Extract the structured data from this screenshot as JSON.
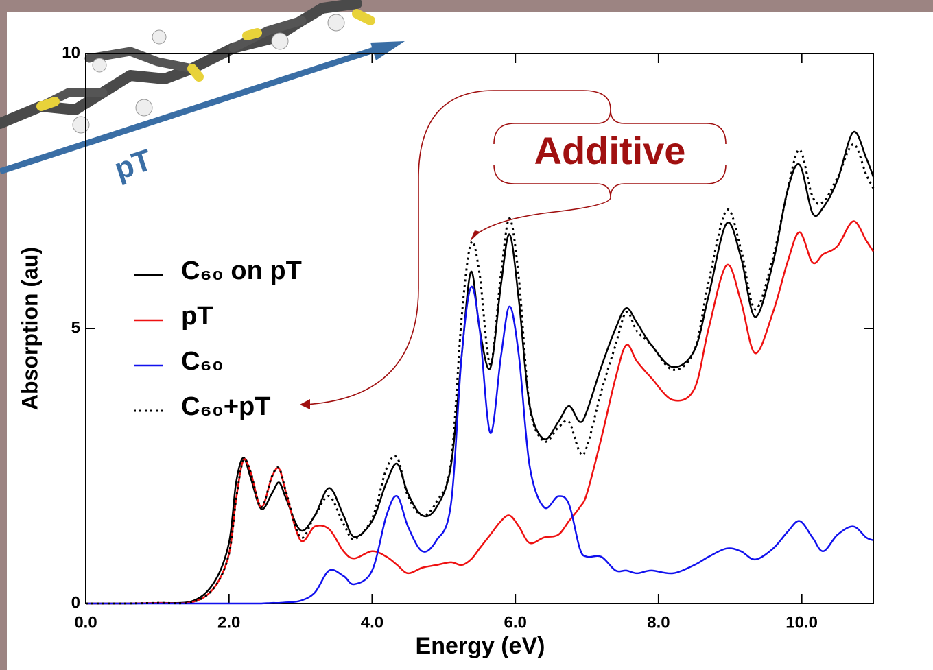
{
  "chart_data": {
    "type": "line",
    "xlabel": "Energy (eV)",
    "ylabel": "Absorption (au)",
    "annotations": [
      "Additive",
      "pT"
    ],
    "x": [
      0,
      0.5,
      1.0,
      1.5,
      1.8,
      2.0,
      2.1,
      2.2,
      2.3,
      2.45,
      2.6,
      2.7,
      2.8,
      3.0,
      3.2,
      3.4,
      3.6,
      3.75,
      4.0,
      4.2,
      4.35,
      4.5,
      4.7,
      4.9,
      5.1,
      5.25,
      5.38,
      5.5,
      5.65,
      5.8,
      5.92,
      6.05,
      6.2,
      6.4,
      6.6,
      6.75,
      6.9,
      7.0,
      7.2,
      7.4,
      7.55,
      7.7,
      7.9,
      8.2,
      8.5,
      8.7,
      8.95,
      9.15,
      9.35,
      9.6,
      9.8,
      9.97,
      10.15,
      10.3,
      10.5,
      10.72,
      10.9,
      11.0
    ],
    "series": [
      {
        "name": "C₆₀ on pT",
        "color": "#000000",
        "style": "solid",
        "values": [
          0,
          0,
          0.01,
          0.05,
          0.4,
          1.1,
          2.2,
          2.65,
          2.3,
          1.72,
          2.0,
          2.2,
          1.9,
          1.33,
          1.6,
          2.1,
          1.6,
          1.21,
          1.5,
          2.2,
          2.54,
          2.0,
          1.6,
          1.75,
          2.5,
          4.5,
          6.03,
          5.0,
          4.28,
          5.8,
          6.71,
          5.5,
          3.6,
          2.99,
          3.3,
          3.59,
          3.3,
          3.5,
          4.3,
          5.0,
          5.37,
          5.1,
          4.7,
          4.3,
          4.6,
          5.6,
          6.91,
          6.3,
          5.21,
          6.2,
          7.5,
          7.98,
          7.1,
          7.2,
          7.7,
          8.57,
          8.1,
          7.76
        ]
      },
      {
        "name": "pT",
        "color": "#ee1111",
        "style": "solid",
        "values": [
          0,
          0,
          0.01,
          0.03,
          0.3,
          0.9,
          1.9,
          2.6,
          2.4,
          1.75,
          2.3,
          2.45,
          2.0,
          1.15,
          1.4,
          1.35,
          0.95,
          0.82,
          0.95,
          0.85,
          0.7,
          0.55,
          0.65,
          0.7,
          0.75,
          0.7,
          0.8,
          1.0,
          1.25,
          1.5,
          1.6,
          1.4,
          1.1,
          1.2,
          1.25,
          1.5,
          1.75,
          2.0,
          3.0,
          4.1,
          4.7,
          4.4,
          4.1,
          3.7,
          3.9,
          5.0,
          6.15,
          5.5,
          4.55,
          5.3,
          6.2,
          6.75,
          6.2,
          6.35,
          6.5,
          6.95,
          6.6,
          6.4
        ]
      },
      {
        "name": "C₆₀",
        "color": "#1111ee",
        "style": "solid",
        "values": [
          0,
          0,
          0,
          0,
          0,
          0,
          0,
          0,
          0,
          0,
          0.01,
          0.01,
          0.02,
          0.05,
          0.2,
          0.6,
          0.5,
          0.35,
          0.6,
          1.6,
          1.95,
          1.4,
          0.95,
          1.15,
          1.8,
          4.5,
          5.75,
          5.0,
          3.1,
          4.5,
          5.4,
          4.5,
          2.5,
          1.75,
          1.95,
          1.8,
          1.0,
          0.85,
          0.85,
          0.6,
          0.6,
          0.55,
          0.6,
          0.55,
          0.7,
          0.85,
          1.0,
          0.95,
          0.8,
          1.0,
          1.3,
          1.5,
          1.2,
          0.95,
          1.25,
          1.4,
          1.2,
          1.15
        ]
      },
      {
        "name": "C₆₀+pT",
        "color": "#000000",
        "style": "dotted",
        "values": [
          0,
          0,
          0.01,
          0.03,
          0.3,
          0.9,
          1.9,
          2.6,
          2.4,
          1.75,
          2.31,
          2.46,
          2.02,
          1.2,
          1.6,
          1.95,
          1.45,
          1.17,
          1.55,
          2.45,
          2.65,
          1.95,
          1.6,
          1.85,
          2.55,
          5.2,
          6.55,
          6.0,
          4.35,
          6.0,
          7.0,
          5.9,
          3.6,
          2.95,
          3.2,
          3.3,
          2.75,
          2.85,
          3.85,
          4.7,
          5.3,
          4.95,
          4.7,
          4.25,
          4.6,
          5.85,
          7.15,
          6.45,
          5.35,
          6.3,
          7.5,
          8.25,
          7.4,
          7.3,
          7.75,
          8.35,
          7.8,
          7.55
        ]
      }
    ],
    "xlim": [
      0,
      11
    ],
    "ylim": [
      0,
      10
    ],
    "xticks": [
      {
        "value": 0,
        "label": "0.0"
      },
      {
        "value": 2,
        "label": "2.0"
      },
      {
        "value": 4,
        "label": "4.0"
      },
      {
        "value": 6,
        "label": "6.0"
      },
      {
        "value": 8,
        "label": "8.0"
      },
      {
        "value": 10,
        "label": "10.0"
      }
    ],
    "yticks": [
      0,
      5,
      10
    ],
    "grid": false
  }
}
